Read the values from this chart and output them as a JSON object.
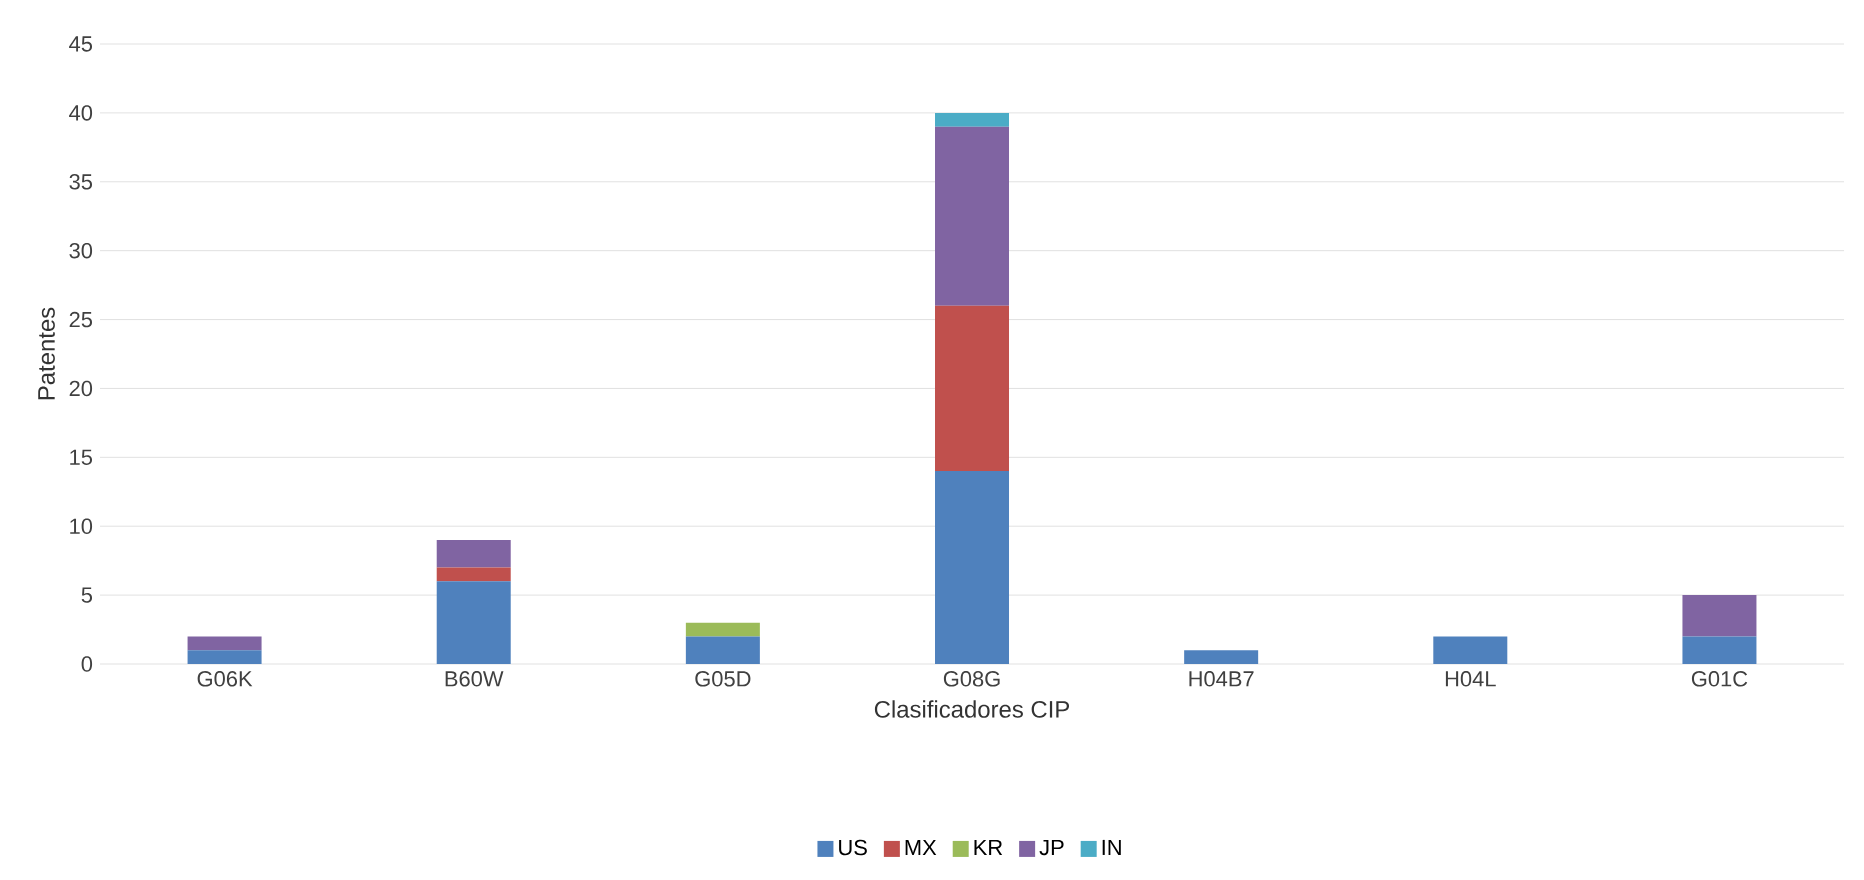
{
  "chart_data": {
    "type": "bar",
    "stacked": true,
    "xlabel": "Clasificadores CIP",
    "ylabel": "Patentes",
    "categories": [
      "G06K",
      "B60W",
      "G05D",
      "G08G",
      "H04B7",
      "H04L",
      "G01C"
    ],
    "series": [
      {
        "name": "US",
        "color": "#4f81bd",
        "values": [
          1,
          6,
          2,
          14,
          1,
          2,
          2
        ]
      },
      {
        "name": "MX",
        "color": "#c0504d",
        "values": [
          0,
          1,
          0,
          12,
          0,
          0,
          0
        ]
      },
      {
        "name": "KR",
        "color": "#9bbb59",
        "values": [
          0,
          0,
          1,
          0,
          0,
          0,
          0
        ]
      },
      {
        "name": "JP",
        "color": "#8064a2",
        "values": [
          1,
          2,
          0,
          13,
          0,
          0,
          3
        ]
      },
      {
        "name": "IN",
        "color": "#4bacc6",
        "values": [
          0,
          0,
          0,
          1,
          0,
          0,
          0
        ]
      }
    ],
    "ylim": [
      0,
      45
    ],
    "yticks": [
      0,
      5,
      10,
      15,
      20,
      25,
      30,
      35,
      40,
      45
    ],
    "grid": "y",
    "legend": "bottom"
  }
}
